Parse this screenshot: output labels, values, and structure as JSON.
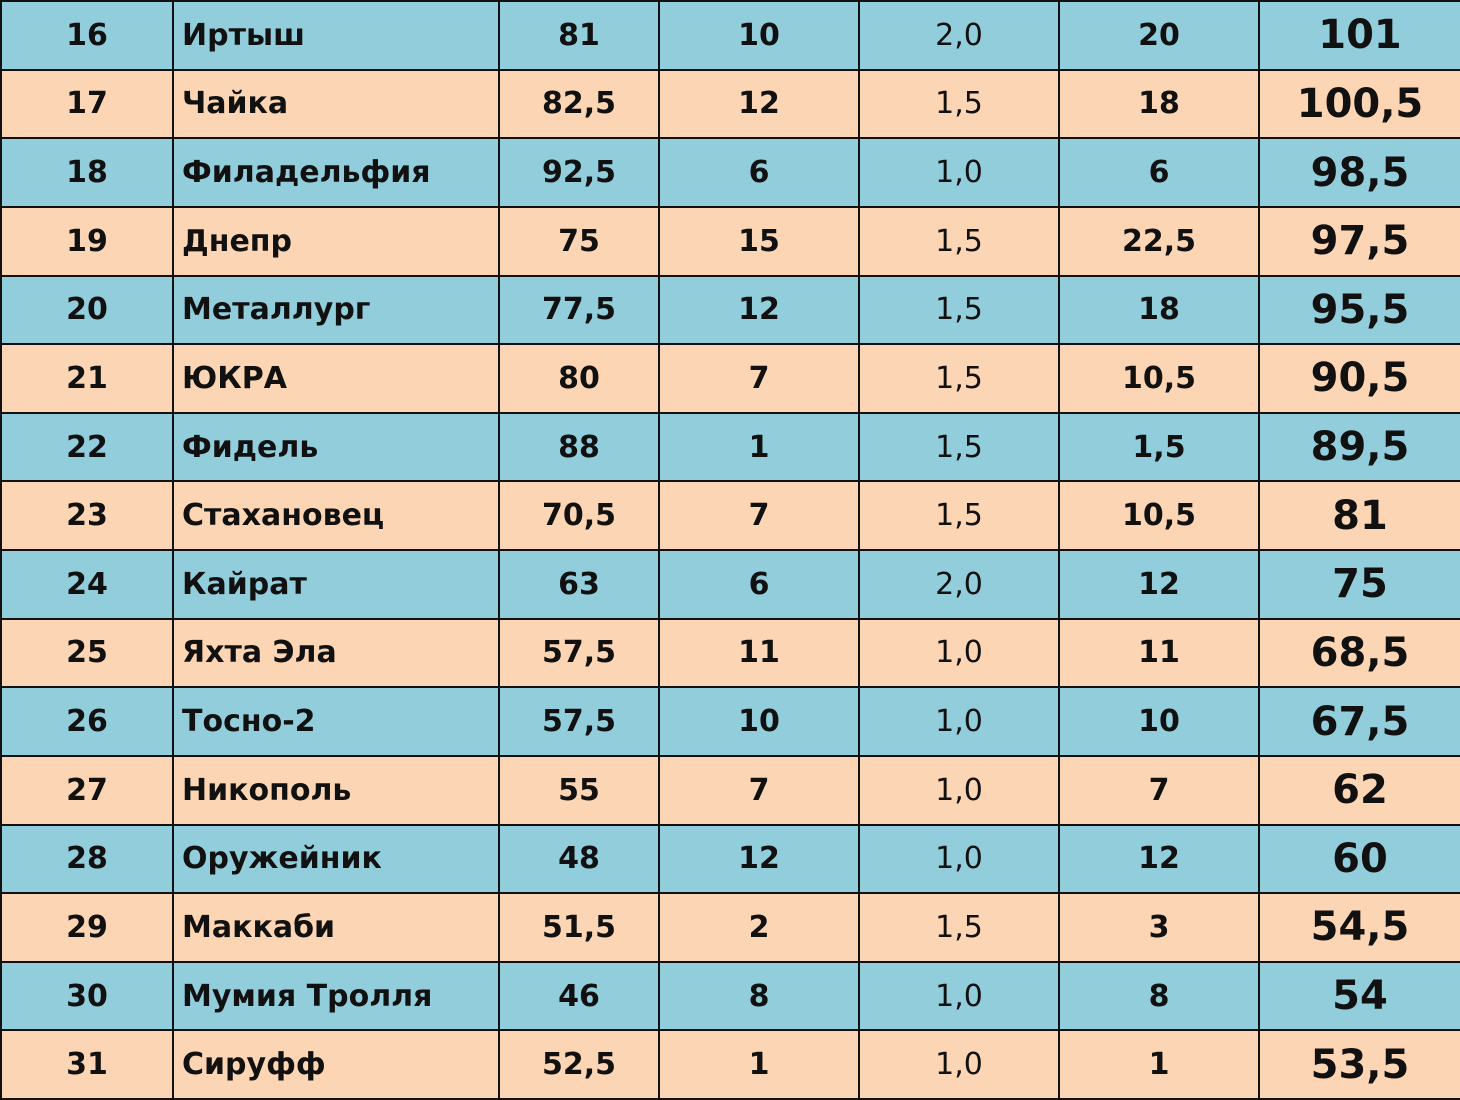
{
  "table": {
    "rows": [
      [
        "16",
        "Иртыш",
        "81",
        "10",
        "2,0",
        "20",
        "101"
      ],
      [
        "17",
        "Чайка",
        "82,5",
        "12",
        "1,5",
        "18",
        "100,5"
      ],
      [
        "18",
        "Филадельфия",
        "92,5",
        "6",
        "1,0",
        "6",
        "98,5"
      ],
      [
        "19",
        "Днепр",
        "75",
        "15",
        "1,5",
        "22,5",
        "97,5"
      ],
      [
        "20",
        "Металлург",
        "77,5",
        "12",
        "1,5",
        "18",
        "95,5"
      ],
      [
        "21",
        "ЮКРА",
        "80",
        "7",
        "1,5",
        "10,5",
        "90,5"
      ],
      [
        "22",
        "Фидель",
        "88",
        "1",
        "1,5",
        "1,5",
        "89,5"
      ],
      [
        "23",
        "Стахановец",
        "70,5",
        "7",
        "1,5",
        "10,5",
        "81"
      ],
      [
        "24",
        "Кайрат",
        "63",
        "6",
        "2,0",
        "12",
        "75"
      ],
      [
        "25",
        "Яхта Эла",
        "57,5",
        "11",
        "1,0",
        "11",
        "68,5"
      ],
      [
        "26",
        "Тосно-2",
        "57,5",
        "10",
        "1,0",
        "10",
        "67,5"
      ],
      [
        "27",
        "Никополь",
        "55",
        "7",
        "1,0",
        "7",
        "62"
      ],
      [
        "28",
        "Оружейник",
        "48",
        "12",
        "1,0",
        "12",
        "60"
      ],
      [
        "29",
        "Маккаби",
        "51,5",
        "2",
        "1,5",
        "3",
        "54,5"
      ],
      [
        "30",
        "Мумия Тролля",
        "46",
        "8",
        "1,0",
        "8",
        "54"
      ],
      [
        "31",
        "Сируфф",
        "52,5",
        "1",
        "1,0",
        "1",
        "53,5"
      ]
    ]
  }
}
